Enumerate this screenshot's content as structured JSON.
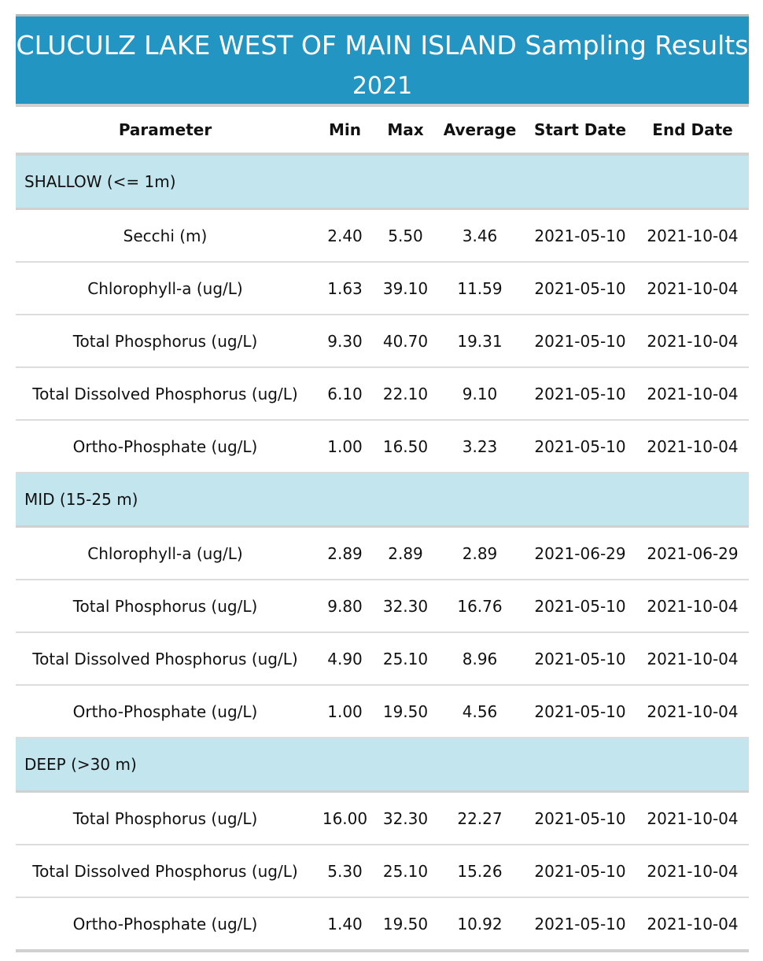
{
  "title": {
    "line1": "CLUCULZ LAKE WEST OF MAIN ISLAND Sampling Results",
    "line2": "2021"
  },
  "columns": [
    "Parameter",
    "Min",
    "Max",
    "Average",
    "Start Date",
    "End Date"
  ],
  "groups": [
    {
      "label": "SHALLOW (<= 1m)",
      "rows": [
        [
          "Secchi (m)",
          "2.40",
          "5.50",
          "3.46",
          "2021-05-10",
          "2021-10-04"
        ],
        [
          "Chlorophyll-a (ug/L)",
          "1.63",
          "39.10",
          "11.59",
          "2021-05-10",
          "2021-10-04"
        ],
        [
          "Total Phosphorus (ug/L)",
          "9.30",
          "40.70",
          "19.31",
          "2021-05-10",
          "2021-10-04"
        ],
        [
          "Total Dissolved Phosphorus (ug/L)",
          "6.10",
          "22.10",
          "9.10",
          "2021-05-10",
          "2021-10-04"
        ],
        [
          "Ortho-Phosphate (ug/L)",
          "1.00",
          "16.50",
          "3.23",
          "2021-05-10",
          "2021-10-04"
        ]
      ]
    },
    {
      "label": "MID (15-25 m)",
      "rows": [
        [
          "Chlorophyll-a (ug/L)",
          "2.89",
          "2.89",
          "2.89",
          "2021-06-29",
          "2021-06-29"
        ],
        [
          "Total Phosphorus (ug/L)",
          "9.80",
          "32.30",
          "16.76",
          "2021-05-10",
          "2021-10-04"
        ],
        [
          "Total Dissolved Phosphorus (ug/L)",
          "4.90",
          "25.10",
          "8.96",
          "2021-05-10",
          "2021-10-04"
        ],
        [
          "Ortho-Phosphate (ug/L)",
          "1.00",
          "19.50",
          "4.56",
          "2021-05-10",
          "2021-10-04"
        ]
      ]
    },
    {
      "label": "DEEP (>30 m)",
      "rows": [
        [
          "Total Phosphorus (ug/L)",
          "16.00",
          "32.30",
          "22.27",
          "2021-05-10",
          "2021-10-04"
        ],
        [
          "Total Dissolved Phosphorus (ug/L)",
          "5.30",
          "25.10",
          "15.26",
          "2021-05-10",
          "2021-10-04"
        ],
        [
          "Ortho-Phosphate (ug/L)",
          "1.40",
          "19.50",
          "10.92",
          "2021-05-10",
          "2021-10-04"
        ]
      ]
    }
  ],
  "colors": {
    "title_bg": "#2395c3",
    "group_bg": "#c2e5ee",
    "rule": "#d0d0d0"
  }
}
